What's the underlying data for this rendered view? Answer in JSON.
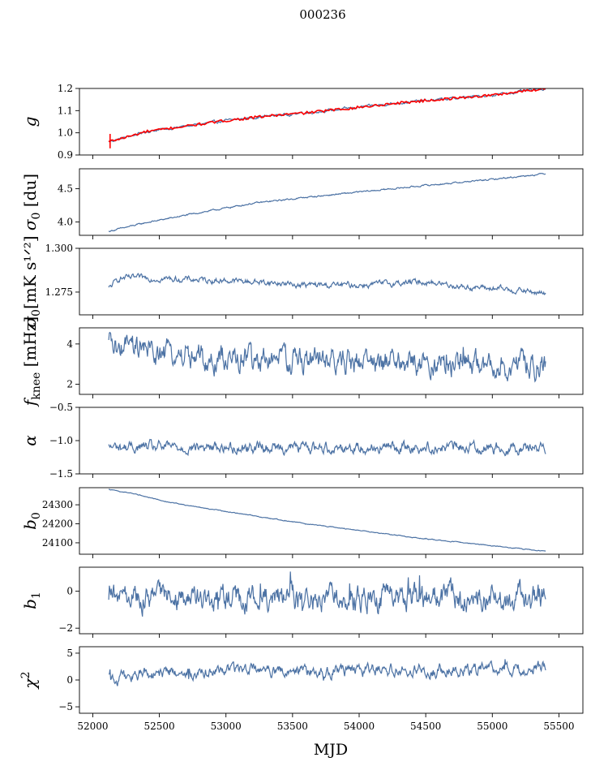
{
  "chart_data": {
    "type": "line",
    "title": "000236",
    "xlabel": "MJD",
    "xlim": [
      51900,
      55680
    ],
    "xticks": [
      52000,
      52500,
      53000,
      53500,
      54000,
      54500,
      55000,
      55500
    ],
    "xtick_labels": [
      "52000",
      "52500",
      "53000",
      "53500",
      "54000",
      "54500",
      "55000",
      "55500"
    ],
    "x_start": 52120,
    "x_end": 55400,
    "line_color": "#4c72a4",
    "red_color": "#ff0000",
    "panels": [
      {
        "id": "g",
        "ylabel": "g",
        "ylabel_sub": "",
        "ylim": [
          0.9,
          1.2
        ],
        "yticks": [
          0.9,
          1.0,
          1.1,
          1.2
        ],
        "ytick_labels": [
          "0.9",
          "1.0",
          "1.1",
          "1.2"
        ],
        "trend": [
          [
            52120,
            0.96
          ],
          [
            52250,
            0.98
          ],
          [
            52400,
            1.005
          ],
          [
            52700,
            1.03
          ],
          [
            53000,
            1.055
          ],
          [
            53300,
            1.075
          ],
          [
            53600,
            1.09
          ],
          [
            54000,
            1.115
          ],
          [
            54300,
            1.135
          ],
          [
            54600,
            1.15
          ],
          [
            55000,
            1.17
          ],
          [
            55400,
            1.2
          ]
        ],
        "noise": 0.004,
        "has_red": true
      },
      {
        "id": "sigma0_du",
        "ylabel": "σ",
        "ylabel_sub": "0",
        "ylabel_rest": " [du]",
        "ylim": [
          3.8,
          4.8
        ],
        "yticks": [
          4.0,
          4.5
        ],
        "ytick_labels": [
          "4.0",
          "4.5"
        ],
        "trend": [
          [
            52120,
            3.86
          ],
          [
            52400,
            3.99
          ],
          [
            52800,
            4.14
          ],
          [
            53200,
            4.28
          ],
          [
            53600,
            4.37
          ],
          [
            54000,
            4.45
          ],
          [
            54500,
            4.55
          ],
          [
            55000,
            4.64
          ],
          [
            55400,
            4.73
          ]
        ],
        "noise": 0.008
      },
      {
        "id": "sigma0_mk",
        "ylabel": "σ",
        "ylabel_sub": "0",
        "ylabel_rest": "[mK s¹ᐟ²]",
        "ylim": [
          1.262,
          1.3
        ],
        "yticks": [
          1.275,
          1.3
        ],
        "ytick_labels": [
          "1.275",
          "1.300"
        ],
        "trend": [
          [
            52120,
            1.277
          ],
          [
            52200,
            1.283
          ],
          [
            52400,
            1.283
          ],
          [
            52800,
            1.282
          ],
          [
            53200,
            1.281
          ],
          [
            53600,
            1.279
          ],
          [
            54000,
            1.279
          ],
          [
            54500,
            1.281
          ],
          [
            54800,
            1.278
          ],
          [
            55200,
            1.276
          ],
          [
            55400,
            1.274
          ]
        ],
        "noise": 0.0012
      },
      {
        "id": "fknee",
        "ylabel": "f",
        "ylabel_sub": "knee",
        "ylabel_rest": " [mHz]",
        "ylim": [
          1.5,
          4.8
        ],
        "yticks": [
          2,
          4
        ],
        "ytick_labels": [
          "2",
          "4"
        ],
        "trend": [
          [
            52120,
            3.9
          ],
          [
            52500,
            3.5
          ],
          [
            53000,
            3.3
          ],
          [
            53500,
            3.2
          ],
          [
            54000,
            3.1
          ],
          [
            54500,
            3.0
          ],
          [
            55000,
            2.9
          ],
          [
            55400,
            2.8
          ]
        ],
        "noise": 0.45
      },
      {
        "id": "alpha",
        "ylabel": "α",
        "ylabel_sub": "",
        "ylim": [
          -1.5,
          -0.5
        ],
        "yticks": [
          -1.5,
          -1.0,
          -0.5
        ],
        "ytick_labels": [
          "−1.5",
          "−1.0",
          "−0.5"
        ],
        "trend": [
          [
            52120,
            -1.1
          ],
          [
            55400,
            -1.1
          ]
        ],
        "noise": 0.06
      },
      {
        "id": "b0",
        "ylabel": "b",
        "ylabel_sub": "0",
        "ylim": [
          24040,
          24390
        ],
        "yticks": [
          24100,
          24200,
          24300
        ],
        "ytick_labels": [
          "24100",
          "24200",
          "24300"
        ],
        "trend": [
          [
            52120,
            24380
          ],
          [
            52300,
            24360
          ],
          [
            52600,
            24310
          ],
          [
            53000,
            24265
          ],
          [
            53500,
            24210
          ],
          [
            54000,
            24165
          ],
          [
            54500,
            24120
          ],
          [
            55000,
            24085
          ],
          [
            55400,
            24055
          ]
        ],
        "noise": 1.5
      },
      {
        "id": "b1",
        "ylabel": "b",
        "ylabel_sub": "1",
        "ylim": [
          -2.3,
          1.3
        ],
        "yticks": [
          -2,
          0
        ],
        "ytick_labels": [
          "−2",
          "0"
        ],
        "trend": [
          [
            52120,
            -0.4
          ],
          [
            55400,
            -0.3
          ]
        ],
        "noise": 0.5
      },
      {
        "id": "chi2",
        "ylabel": "χ",
        "ylabel_sub": "",
        "ylabel_sup": "2",
        "ylim": [
          -6.2,
          6.2
        ],
        "yticks": [
          -5,
          0,
          5
        ],
        "ytick_labels": [
          "−5",
          "0",
          "5"
        ],
        "trend": [
          [
            52120,
            0.3
          ],
          [
            52500,
            1.2
          ],
          [
            53000,
            1.6
          ],
          [
            54000,
            1.9
          ],
          [
            55000,
            1.9
          ],
          [
            55400,
            2.5
          ]
        ],
        "noise": 0.8
      }
    ]
  }
}
